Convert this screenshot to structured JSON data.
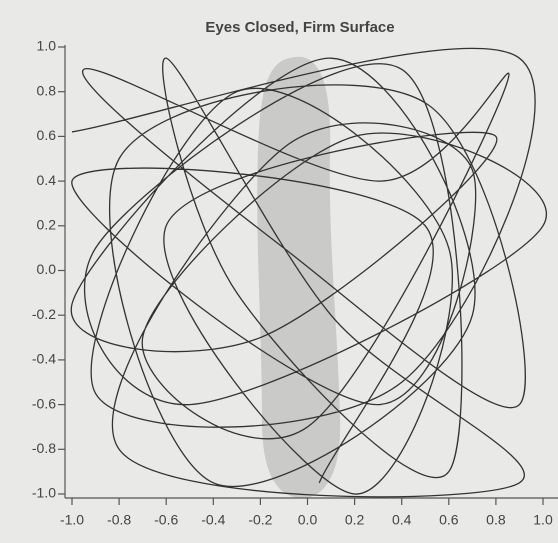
{
  "chart_data": {
    "type": "line",
    "title": "Eyes Closed, Firm Surface",
    "x": [
      -1.0,
      0.9,
      0.4,
      -0.9,
      -0.3,
      0.6,
      0.2,
      -0.6,
      0.8,
      -0.2,
      -1.0,
      0.1,
      0.7,
      -0.4,
      -0.8,
      0.5,
      0.9,
      -0.1,
      -0.95,
      0.3,
      0.85,
      0.0,
      -0.7,
      0.2,
      1.0,
      -0.5,
      -0.9,
      0.4,
      0.6,
      -0.3,
      -0.6,
      0.1,
      0.9,
      -0.8,
      -0.1,
      0.7,
      0.3,
      -1.0,
      0.5,
      0.05
    ],
    "values": [
      0.62,
      0.95,
      -0.5,
      -0.55,
      0.8,
      0.1,
      -1.0,
      0.2,
      0.6,
      -0.3,
      -0.15,
      0.95,
      -0.2,
      -0.95,
      0.5,
      0.75,
      -0.6,
      0.1,
      0.9,
      0.4,
      0.85,
      -0.7,
      -0.3,
      0.6,
      0.2,
      -0.6,
      0.1,
      0.9,
      -0.9,
      -0.1,
      0.95,
      -0.2,
      -0.95,
      -0.8,
      0.55,
      0.45,
      -0.6,
      0.4,
      0.2,
      -0.95
    ],
    "color": "#333333",
    "xlim": [
      -1.0,
      1.0
    ],
    "xticks": [
      {
        "value": -1.0,
        "label": "-1.0"
      },
      -0.8,
      -0.6,
      -0.4,
      -0.2,
      {
        "value": 0.0,
        "label": "0.0"
      },
      0.2,
      0.4,
      0.6,
      0.8,
      {
        "value": 1.0,
        "label": "1.0"
      }
    ],
    "ylim": [
      -1.0,
      1.0
    ],
    "yticks": [
      {
        "value": -1.0,
        "label": "-1.0"
      },
      -0.8,
      -0.6,
      -0.4,
      -0.2,
      {
        "value": 0.0,
        "label": "0.0"
      },
      0.2,
      0.4,
      0.6,
      0.8,
      {
        "value": 1.0,
        "label": "1.0"
      }
    ]
  }
}
